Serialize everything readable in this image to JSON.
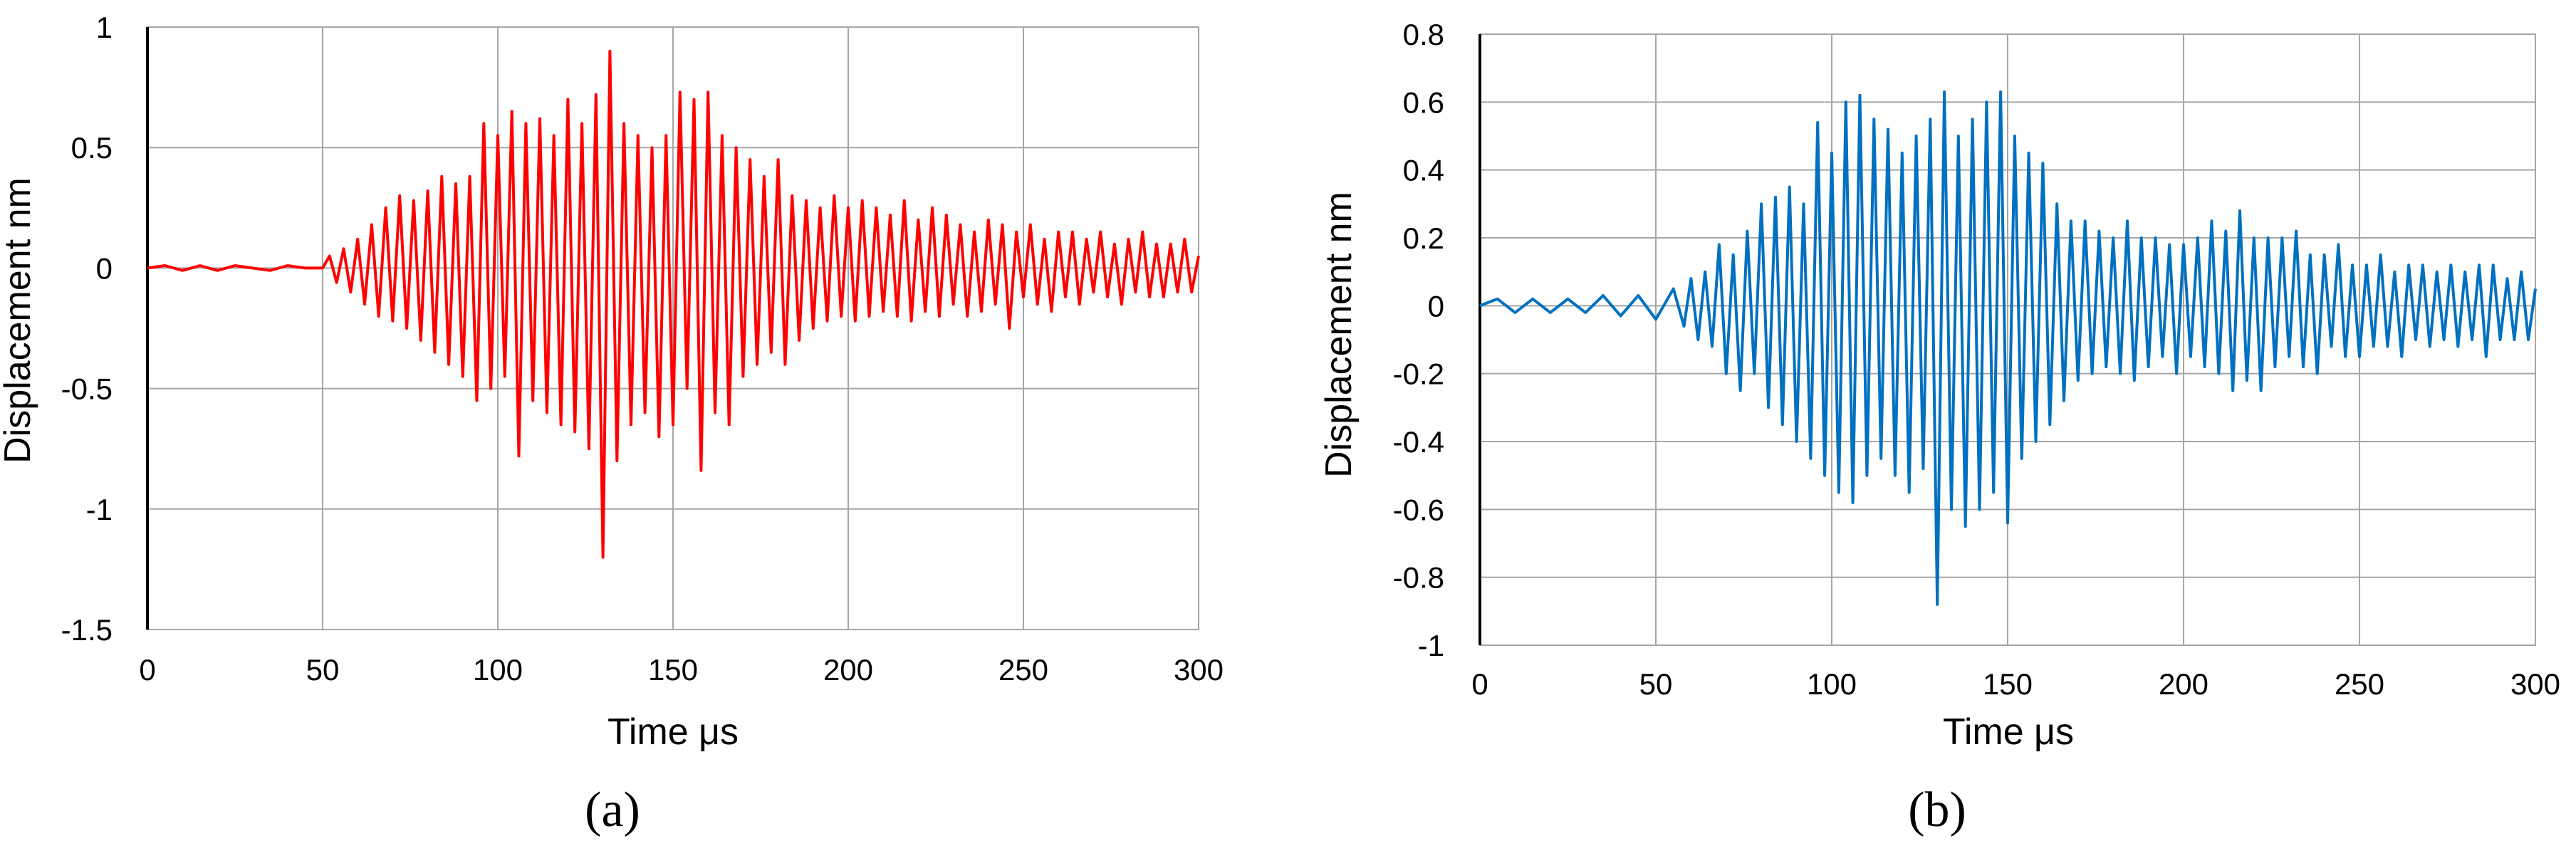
{
  "chart_data": [
    {
      "type": "line",
      "panel_label": "(a)",
      "xlabel": "Time  μs",
      "ylabel": "Displacement  nm",
      "xlim": [
        0,
        300
      ],
      "ylim": [
        -1.5,
        1
      ],
      "xticks": [
        0,
        50,
        100,
        150,
        200,
        250,
        300
      ],
      "yticks": [
        -1.5,
        -1,
        -0.5,
        0,
        0.5,
        1
      ],
      "xtick_labels": [
        "0",
        "50",
        "100",
        "150",
        "200",
        "250",
        "300"
      ],
      "ytick_labels": [
        "-1.5",
        "-1",
        "-0.5",
        "0",
        "0.5",
        "1"
      ],
      "grid": true,
      "legend": "none",
      "color": "#ff0000",
      "series": [
        {
          "x": [
            0,
            5,
            10,
            15,
            20,
            25,
            30,
            35,
            40,
            45,
            50,
            52,
            54,
            56,
            58,
            60,
            62,
            64,
            66,
            68,
            70,
            72,
            74,
            76,
            78,
            80,
            82,
            84,
            86,
            88,
            90,
            92,
            94,
            96,
            98,
            100,
            102,
            104,
            106,
            108,
            110,
            112,
            114,
            116,
            118,
            120,
            122,
            124,
            126,
            128,
            130,
            132,
            134,
            136,
            138,
            140,
            142,
            144,
            146,
            148,
            150,
            152,
            154,
            156,
            158,
            160,
            162,
            164,
            166,
            168,
            170,
            172,
            174,
            176,
            178,
            180,
            182,
            184,
            186,
            188,
            190,
            192,
            194,
            196,
            198,
            200,
            202,
            204,
            206,
            208,
            210,
            212,
            214,
            216,
            218,
            220,
            222,
            224,
            226,
            228,
            230,
            232,
            234,
            236,
            238,
            240,
            242,
            244,
            246,
            248,
            250,
            252,
            254,
            256,
            258,
            260,
            262,
            264,
            266,
            268,
            270,
            272,
            274,
            276,
            278,
            280,
            282,
            284,
            286,
            288,
            290,
            292,
            294,
            296,
            298,
            300
          ],
          "y": [
            0,
            0.01,
            -0.01,
            0.01,
            -0.01,
            0.01,
            0,
            -0.01,
            0.01,
            0,
            0,
            0.05,
            -0.06,
            0.08,
            -0.1,
            0.12,
            -0.15,
            0.18,
            -0.2,
            0.25,
            -0.22,
            0.3,
            -0.25,
            0.28,
            -0.3,
            0.32,
            -0.35,
            0.38,
            -0.4,
            0.35,
            -0.45,
            0.38,
            -0.55,
            0.6,
            -0.5,
            0.55,
            -0.45,
            0.65,
            -0.78,
            0.6,
            -0.55,
            0.62,
            -0.6,
            0.55,
            -0.65,
            0.7,
            -0.68,
            0.6,
            -0.75,
            0.72,
            -1.2,
            0.9,
            -0.8,
            0.6,
            -0.65,
            0.55,
            -0.6,
            0.5,
            -0.7,
            0.55,
            -0.65,
            0.73,
            -0.5,
            0.7,
            -0.84,
            0.73,
            -0.6,
            0.55,
            -0.65,
            0.5,
            -0.45,
            0.45,
            -0.4,
            0.38,
            -0.35,
            0.45,
            -0.4,
            0.3,
            -0.3,
            0.28,
            -0.25,
            0.25,
            -0.22,
            0.3,
            -0.2,
            0.25,
            -0.22,
            0.28,
            -0.2,
            0.25,
            -0.18,
            0.22,
            -0.2,
            0.28,
            -0.22,
            0.2,
            -0.18,
            0.25,
            -0.2,
            0.22,
            -0.15,
            0.18,
            -0.2,
            0.15,
            -0.18,
            0.2,
            -0.15,
            0.18,
            -0.25,
            0.15,
            -0.12,
            0.18,
            -0.15,
            0.12,
            -0.18,
            0.15,
            -0.12,
            0.15,
            -0.15,
            0.12,
            -0.1,
            0.15,
            -0.12,
            0.1,
            -0.15,
            0.12,
            -0.1,
            0.15,
            -0.12,
            0.1,
            -0.12,
            0.1,
            -0.1,
            0.12,
            -0.1,
            0.05
          ]
        }
      ]
    },
    {
      "type": "line",
      "panel_label": "(b)",
      "xlabel": "Time  μs",
      "ylabel": "Displacement  nm",
      "xlim": [
        0,
        300
      ],
      "ylim": [
        -1,
        0.8
      ],
      "xticks": [
        0,
        50,
        100,
        150,
        200,
        250,
        300
      ],
      "yticks": [
        -1,
        -0.8,
        -0.6,
        -0.4,
        -0.2,
        0,
        0.2,
        0.4,
        0.6,
        0.8
      ],
      "xtick_labels": [
        "0",
        "50",
        "100",
        "150",
        "200",
        "250",
        "300"
      ],
      "ytick_labels": [
        "-1",
        "-0.8",
        "-0.6",
        "-0.4",
        "-0.2",
        "0",
        "0.2",
        "0.4",
        "0.6",
        "0.8"
      ],
      "grid": true,
      "legend": "none",
      "color": "#0070c0",
      "series": [
        {
          "x": [
            0,
            5,
            10,
            15,
            20,
            25,
            30,
            35,
            40,
            45,
            50,
            55,
            58,
            60,
            62,
            64,
            66,
            68,
            70,
            72,
            74,
            76,
            78,
            80,
            82,
            84,
            86,
            88,
            90,
            92,
            94,
            96,
            98,
            100,
            102,
            104,
            106,
            108,
            110,
            112,
            114,
            116,
            118,
            120,
            122,
            124,
            126,
            128,
            130,
            132,
            134,
            136,
            138,
            140,
            142,
            144,
            146,
            148,
            150,
            152,
            154,
            156,
            158,
            160,
            162,
            164,
            166,
            168,
            170,
            172,
            174,
            176,
            178,
            180,
            182,
            184,
            186,
            188,
            190,
            192,
            194,
            196,
            198,
            200,
            202,
            204,
            206,
            208,
            210,
            212,
            214,
            216,
            218,
            220,
            222,
            224,
            226,
            228,
            230,
            232,
            234,
            236,
            238,
            240,
            242,
            244,
            246,
            248,
            250,
            252,
            254,
            256,
            258,
            260,
            262,
            264,
            266,
            268,
            270,
            272,
            274,
            276,
            278,
            280,
            282,
            284,
            286,
            288,
            290,
            292,
            294,
            296,
            298,
            300
          ],
          "y": [
            0,
            0.02,
            -0.02,
            0.02,
            -0.02,
            0.02,
            -0.02,
            0.03,
            -0.03,
            0.03,
            -0.04,
            0.05,
            -0.06,
            0.08,
            -0.1,
            0.1,
            -0.12,
            0.18,
            -0.2,
            0.15,
            -0.25,
            0.22,
            -0.2,
            0.3,
            -0.3,
            0.32,
            -0.35,
            0.35,
            -0.4,
            0.3,
            -0.45,
            0.54,
            -0.5,
            0.45,
            -0.55,
            0.6,
            -0.58,
            0.62,
            -0.5,
            0.55,
            -0.45,
            0.52,
            -0.5,
            0.45,
            -0.55,
            0.5,
            -0.48,
            0.55,
            -0.88,
            0.63,
            -0.6,
            0.5,
            -0.65,
            0.55,
            -0.6,
            0.6,
            -0.55,
            0.63,
            -0.64,
            0.5,
            -0.45,
            0.45,
            -0.4,
            0.42,
            -0.35,
            0.3,
            -0.28,
            0.25,
            -0.22,
            0.25,
            -0.2,
            0.22,
            -0.18,
            0.2,
            -0.2,
            0.25,
            -0.22,
            0.2,
            -0.18,
            0.2,
            -0.15,
            0.18,
            -0.2,
            0.18,
            -0.15,
            0.2,
            -0.18,
            0.25,
            -0.2,
            0.22,
            -0.25,
            0.28,
            -0.22,
            0.2,
            -0.25,
            0.2,
            -0.18,
            0.2,
            -0.15,
            0.22,
            -0.18,
            0.15,
            -0.2,
            0.15,
            -0.12,
            0.18,
            -0.15,
            0.12,
            -0.15,
            0.12,
            -0.12,
            0.15,
            -0.12,
            0.1,
            -0.15,
            0.12,
            -0.1,
            0.12,
            -0.12,
            0.1,
            -0.1,
            0.12,
            -0.12,
            0.1,
            -0.1,
            0.12,
            -0.15,
            0.12,
            -0.1,
            0.08,
            -0.1,
            0.1,
            -0.1,
            0.05
          ]
        }
      ]
    }
  ]
}
